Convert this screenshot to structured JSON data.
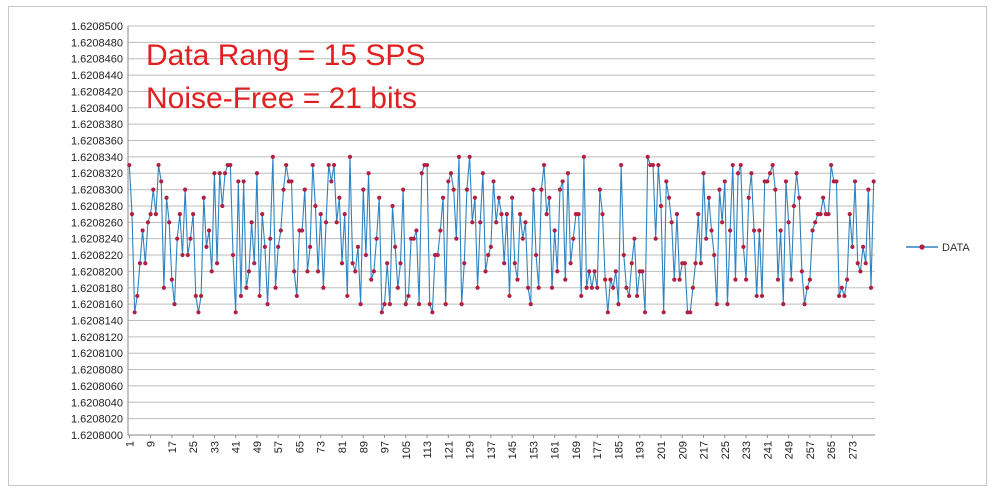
{
  "chart_data": {
    "type": "line",
    "title": "",
    "xlabel": "",
    "ylabel": "",
    "ylim": [
      1.6208,
      1.62085
    ],
    "y_tick_labels": [
      "1.6208500",
      "1.6208480",
      "1.6208460",
      "1.6208440",
      "1.6208420",
      "1.6208400",
      "1.6208380",
      "1.6208360",
      "1.6208340",
      "1.6208320",
      "1.6208300",
      "1.6208280",
      "1.6208260",
      "1.6208240",
      "1.6208220",
      "1.6208200",
      "1.6208180",
      "1.6208160",
      "1.6208140",
      "1.6208120",
      "1.6208100",
      "1.6208080",
      "1.6208060",
      "1.6208040",
      "1.6208020",
      "1.6208000"
    ],
    "x_tick_labels": [
      "1",
      "9",
      "17",
      "25",
      "33",
      "41",
      "49",
      "57",
      "65",
      "73",
      "81",
      "89",
      "97",
      "105",
      "113",
      "121",
      "129",
      "137",
      "145",
      "153",
      "161",
      "169",
      "177",
      "185",
      "193",
      "201",
      "209",
      "217",
      "225",
      "233",
      "241",
      "249",
      "257",
      "265",
      "273"
    ],
    "grid": "horizontal",
    "legend_position": "right",
    "annotations": [
      "Data Rang = 15 SPS",
      "Noise-Free = 21 bits"
    ],
    "annotation_color": "#e02020",
    "series": [
      {
        "name": "DATA",
        "line_color": "#2e83c0",
        "marker_color": "#b02040",
        "x_start": 1,
        "values": [
          1.620833,
          1.620827,
          1.620815,
          1.620817,
          1.620821,
          1.620825,
          1.620821,
          1.620826,
          1.620827,
          1.62083,
          1.620827,
          1.620833,
          1.620831,
          1.620818,
          1.620829,
          1.620826,
          1.620819,
          1.620816,
          1.620824,
          1.620827,
          1.620822,
          1.62083,
          1.620822,
          1.620824,
          1.620827,
          1.620817,
          1.620815,
          1.620817,
          1.620829,
          1.620823,
          1.620825,
          1.62082,
          1.620832,
          1.620821,
          1.620832,
          1.620828,
          1.620832,
          1.620833,
          1.620833,
          1.620822,
          1.620815,
          1.620831,
          1.620817,
          1.620831,
          1.620818,
          1.62082,
          1.620826,
          1.620821,
          1.620832,
          1.620817,
          1.620827,
          1.620823,
          1.620816,
          1.620824,
          1.620834,
          1.620818,
          1.620823,
          1.620825,
          1.62083,
          1.620833,
          1.620831,
          1.620831,
          1.62082,
          1.620817,
          1.620825,
          1.620825,
          1.62083,
          1.62082,
          1.620823,
          1.620833,
          1.620828,
          1.62082,
          1.620827,
          1.620818,
          1.620826,
          1.620833,
          1.620831,
          1.620833,
          1.620826,
          1.620829,
          1.620821,
          1.620827,
          1.620817,
          1.620834,
          1.620821,
          1.62082,
          1.620823,
          1.620816,
          1.62083,
          1.620822,
          1.620832,
          1.620819,
          1.62082,
          1.620824,
          1.620829,
          1.620815,
          1.620816,
          1.620821,
          1.620816,
          1.620828,
          1.620823,
          1.620818,
          1.620821,
          1.62083,
          1.620816,
          1.620817,
          1.620824,
          1.620824,
          1.620825,
          1.620816,
          1.620832,
          1.620833,
          1.620833,
          1.620816,
          1.620815,
          1.620822,
          1.620822,
          1.620825,
          1.620829,
          1.620816,
          1.620831,
          1.620832,
          1.62083,
          1.620824,
          1.620834,
          1.620816,
          1.620821,
          1.62083,
          1.620834,
          1.620826,
          1.620829,
          1.620818,
          1.620826,
          1.620832,
          1.62082,
          1.620822,
          1.620823,
          1.620831,
          1.620826,
          1.620829,
          1.620827,
          1.620821,
          1.620827,
          1.620817,
          1.620829,
          1.620821,
          1.620819,
          1.620827,
          1.620824,
          1.620826,
          1.620818,
          1.620816,
          1.62083,
          1.620822,
          1.620818,
          1.62083,
          1.620833,
          1.620827,
          1.620829,
          1.620818,
          1.620825,
          1.62082,
          1.62083,
          1.620831,
          1.620819,
          1.620832,
          1.620821,
          1.620824,
          1.620827,
          1.620827,
          1.620817,
          1.620834,
          1.620818,
          1.62082,
          1.620818,
          1.62082,
          1.620818,
          1.62083,
          1.620827,
          1.620819,
          1.620815,
          1.620819,
          1.620818,
          1.62082,
          1.620816,
          1.620833,
          1.620822,
          1.620818,
          1.620817,
          1.620821,
          1.620824,
          1.620817,
          1.62082,
          1.62082,
          1.620815,
          1.620834,
          1.620833,
          1.620833,
          1.620824,
          1.620833,
          1.620828,
          1.620815,
          1.620831,
          1.620829,
          1.620826,
          1.620819,
          1.620827,
          1.620819,
          1.620821,
          1.620821,
          1.620815,
          1.620815,
          1.620818,
          1.620821,
          1.620827,
          1.620821,
          1.620832,
          1.620824,
          1.620829,
          1.620825,
          1.620822,
          1.620816,
          1.62083,
          1.620826,
          1.620831,
          1.620816,
          1.620825,
          1.620833,
          1.620819,
          1.620832,
          1.620833,
          1.620823,
          1.620819,
          1.620829,
          1.620832,
          1.620825,
          1.620817,
          1.620825,
          1.620817,
          1.620831,
          1.620831,
          1.620832,
          1.620833,
          1.62083,
          1.620819,
          1.620825,
          1.620816,
          1.620831,
          1.620826,
          1.620819,
          1.620828,
          1.620832,
          1.620829,
          1.62082,
          1.620816,
          1.620818,
          1.620819,
          1.620825,
          1.620826,
          1.620827,
          1.620827,
          1.620829,
          1.620827,
          1.620827,
          1.620833,
          1.620831,
          1.620831,
          1.620817,
          1.620818,
          1.620817,
          1.620819,
          1.620827,
          1.620823,
          1.620831,
          1.620821,
          1.62082,
          1.620823,
          1.620821,
          1.62083,
          1.620818,
          1.620831
        ]
      }
    ]
  }
}
